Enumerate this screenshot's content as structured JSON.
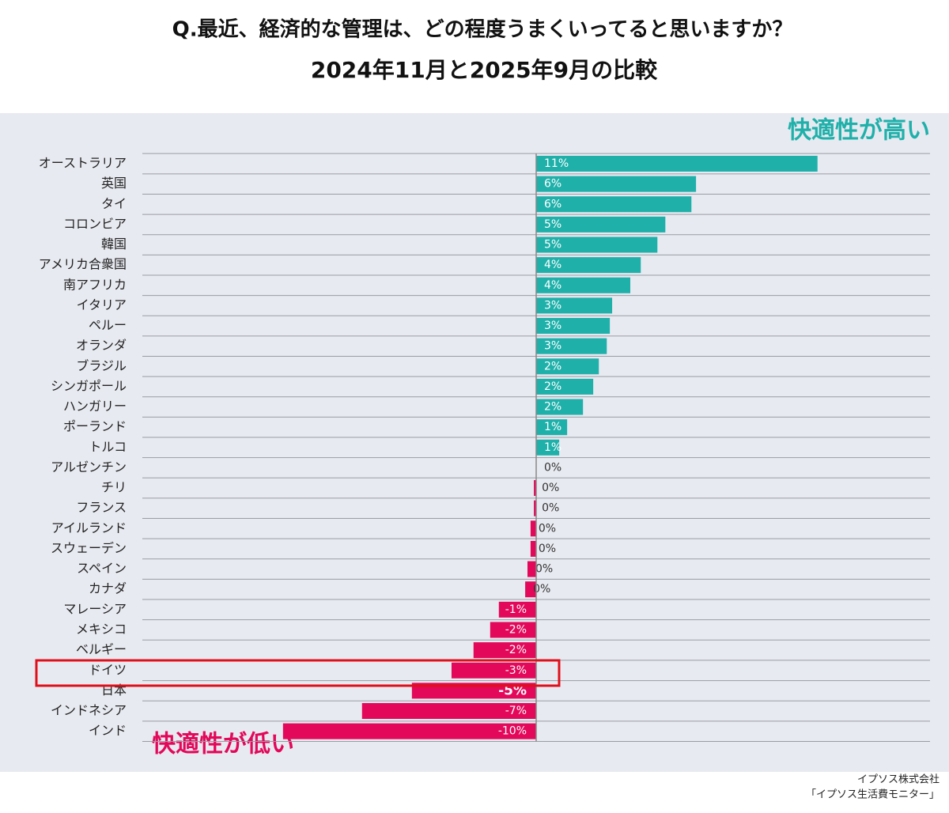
{
  "chart_data": {
    "type": "hbar",
    "title": "Q.最近、経済的な管理は、どの程度うまくいってると思いますか？",
    "subtitle": "2024年11月と2025年9月の比較",
    "annotations": [
      "快適性が高い",
      "快適性が低い"
    ],
    "source": [
      "イプソス株式会社",
      "「イプソス生活費モニター」"
    ],
    "categories": [
      "オーストラリア",
      "英国",
      "タイ",
      "コロンビア",
      "韓国",
      "アメリカ合衆国",
      "南アフリカ",
      "イタリア",
      "ペルー",
      "オランダ",
      "ブラジル",
      "シンガポール",
      "ハンガリー",
      "ポーランド",
      "トルコ",
      "アルゼンチン",
      "チリ",
      "フランス",
      "アイルランド",
      "スウェーデン",
      "スペイン",
      "カナダ",
      "マレーシア",
      "メキシコ",
      "ベルギー",
      "ドイツ",
      "日本",
      "インドネシア",
      "インド"
    ],
    "values": [
      11,
      6.25,
      6.07,
      5.05,
      4.74,
      4.09,
      3.68,
      2.97,
      2.88,
      2.76,
      2.45,
      2.23,
      1.83,
      1.21,
      0.9,
      0,
      -0.09,
      -0.09,
      -0.22,
      -0.22,
      -0.34,
      -0.43,
      -1.46,
      -1.8,
      -2.45,
      -3.31,
      -4.86,
      -6.81,
      -9.9
    ],
    "value_labels": [
      "11%",
      "6%",
      "6%",
      "5%",
      "5%",
      "4%",
      "4%",
      "3%",
      "3%",
      "3%",
      "2%",
      "2%",
      "2%",
      "1%",
      "1%",
      "0%",
      "0%",
      "0%",
      "0%",
      "0%",
      "0%",
      "0%",
      "-1%",
      "-2%",
      "-2%",
      "-3%",
      "-5%",
      "-7%",
      "-10%"
    ],
    "positive_color": "#1fb0aa",
    "negative_color": "#e3085a",
    "xlim": [
      -15.4,
      15.4
    ]
  }
}
